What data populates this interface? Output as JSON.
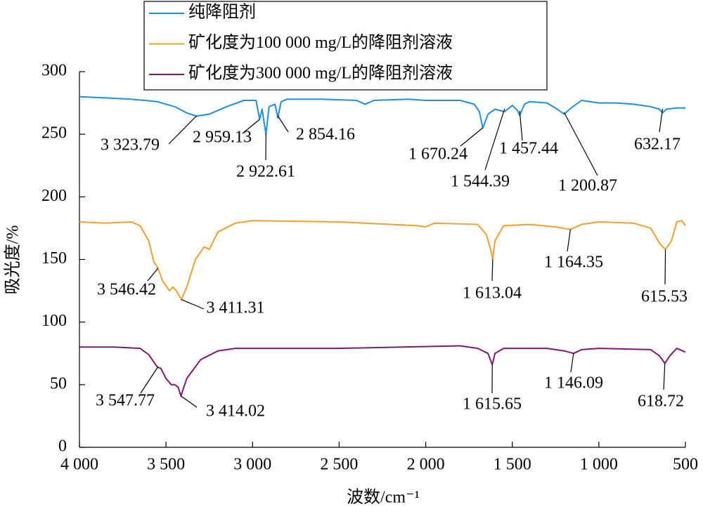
{
  "chart_data": {
    "type": "line",
    "xlabel": "波数/cm⁻¹",
    "ylabel": "吸光度/%",
    "xlim": [
      4000,
      500
    ],
    "ylim": [
      0,
      300
    ],
    "xticks": [
      {
        "value": 4000,
        "label": "4 000"
      },
      {
        "value": 3500,
        "label": "3 500"
      },
      {
        "value": 3000,
        "label": "3 000"
      },
      {
        "value": 2500,
        "label": "2 500"
      },
      {
        "value": 2000,
        "label": "2 000"
      },
      {
        "value": 1500,
        "label": "1 500"
      },
      {
        "value": 1000,
        "label": "1 000"
      },
      500
    ],
    "yticks": [
      0,
      50,
      100,
      150,
      200,
      250,
      300
    ],
    "legend": "top-center",
    "series": [
      {
        "name": "纯降阻剂",
        "color": "#1e8fdb",
        "x": [
          4000,
          3850,
          3700,
          3550,
          3450,
          3380,
          3323.79,
          3250,
          3150,
          3050,
          2980,
          2959.13,
          2945,
          2922.61,
          2905,
          2870,
          2854.16,
          2835,
          2800,
          2600,
          2400,
          2350,
          2300,
          2100,
          2000,
          1800,
          1720,
          1690,
          1670.24,
          1640,
          1600,
          1544.39,
          1500,
          1470,
          1457.44,
          1430,
          1400,
          1300,
          1240,
          1200.87,
          1160,
          1100,
          1000,
          900,
          800,
          700,
          650,
          632.17,
          610,
          550,
          500
        ],
        "values": [
          280,
          279,
          278,
          276,
          272,
          267,
          264.5,
          266,
          272,
          277,
          277,
          262,
          270,
          250,
          272,
          274,
          263,
          276,
          278,
          278,
          277,
          274,
          277,
          278,
          277,
          277,
          274,
          268,
          255,
          266,
          270,
          268,
          273,
          269,
          265,
          274,
          276,
          275,
          270,
          266,
          271,
          277,
          275,
          275,
          274,
          272,
          270,
          267,
          270,
          271,
          271
        ],
        "peaks": [
          {
            "value": 3323.79,
            "label": "3 323.79"
          },
          {
            "value": 2959.13,
            "label": "2 959.13"
          },
          {
            "value": 2922.61,
            "label": "2 922.61"
          },
          {
            "value": 2854.16,
            "label": "2 854.16"
          },
          {
            "value": 1670.24,
            "label": "1 670.24"
          },
          {
            "value": 1544.39,
            "label": "1 544.39"
          },
          {
            "value": 1457.44,
            "label": "1 457.44"
          },
          {
            "value": 1200.87,
            "label": "1 200.87"
          },
          {
            "value": 632.17,
            "label": "632.17"
          }
        ]
      },
      {
        "name": "矿化度为100 000 mg/L的降阻剂溶液",
        "color": "#f0a030",
        "x": [
          4000,
          3850,
          3700,
          3650,
          3600,
          3570,
          3546.42,
          3520,
          3480,
          3460,
          3440,
          3411.31,
          3380,
          3330,
          3280,
          3250,
          3200,
          3100,
          3000,
          2500,
          2050,
          2000,
          1950,
          1700,
          1650,
          1625,
          1613.04,
          1600,
          1550,
          1400,
          1250,
          1164.35,
          1100,
          1000,
          800,
          700,
          650,
          615.53,
          580,
          550,
          520,
          500
        ],
        "values": [
          180,
          179,
          180,
          177,
          165,
          148,
          143,
          133,
          125,
          128,
          125,
          118,
          128,
          150,
          160,
          158,
          172,
          179,
          181,
          180,
          177,
          176,
          179,
          178,
          170,
          158,
          150,
          165,
          177,
          178,
          176,
          174,
          178,
          180,
          179,
          175,
          163,
          158,
          165,
          180,
          181,
          177
        ]
      },
      {
        "name": "矿化度为300 000 mg/L的降阻剂溶液",
        "color": "#7b1a72",
        "x": [
          4000,
          3800,
          3650,
          3600,
          3560,
          3547.77,
          3530,
          3500,
          3470,
          3450,
          3430,
          3414.02,
          3380,
          3300,
          3200,
          3100,
          2500,
          1800,
          1700,
          1640,
          1615.65,
          1600,
          1550,
          1300,
          1200,
          1146.09,
          1100,
          1000,
          700,
          650,
          618.72,
          590,
          550,
          500
        ],
        "values": [
          80,
          80,
          79,
          74,
          66,
          64,
          63,
          55,
          50,
          50,
          48,
          41,
          55,
          70,
          77,
          79,
          79,
          81,
          79,
          75,
          66,
          75,
          79,
          79,
          77,
          75,
          78,
          79,
          78,
          73,
          67,
          73,
          79,
          76
        ],
        "peaks_placeholder": null
      }
    ]
  }
}
